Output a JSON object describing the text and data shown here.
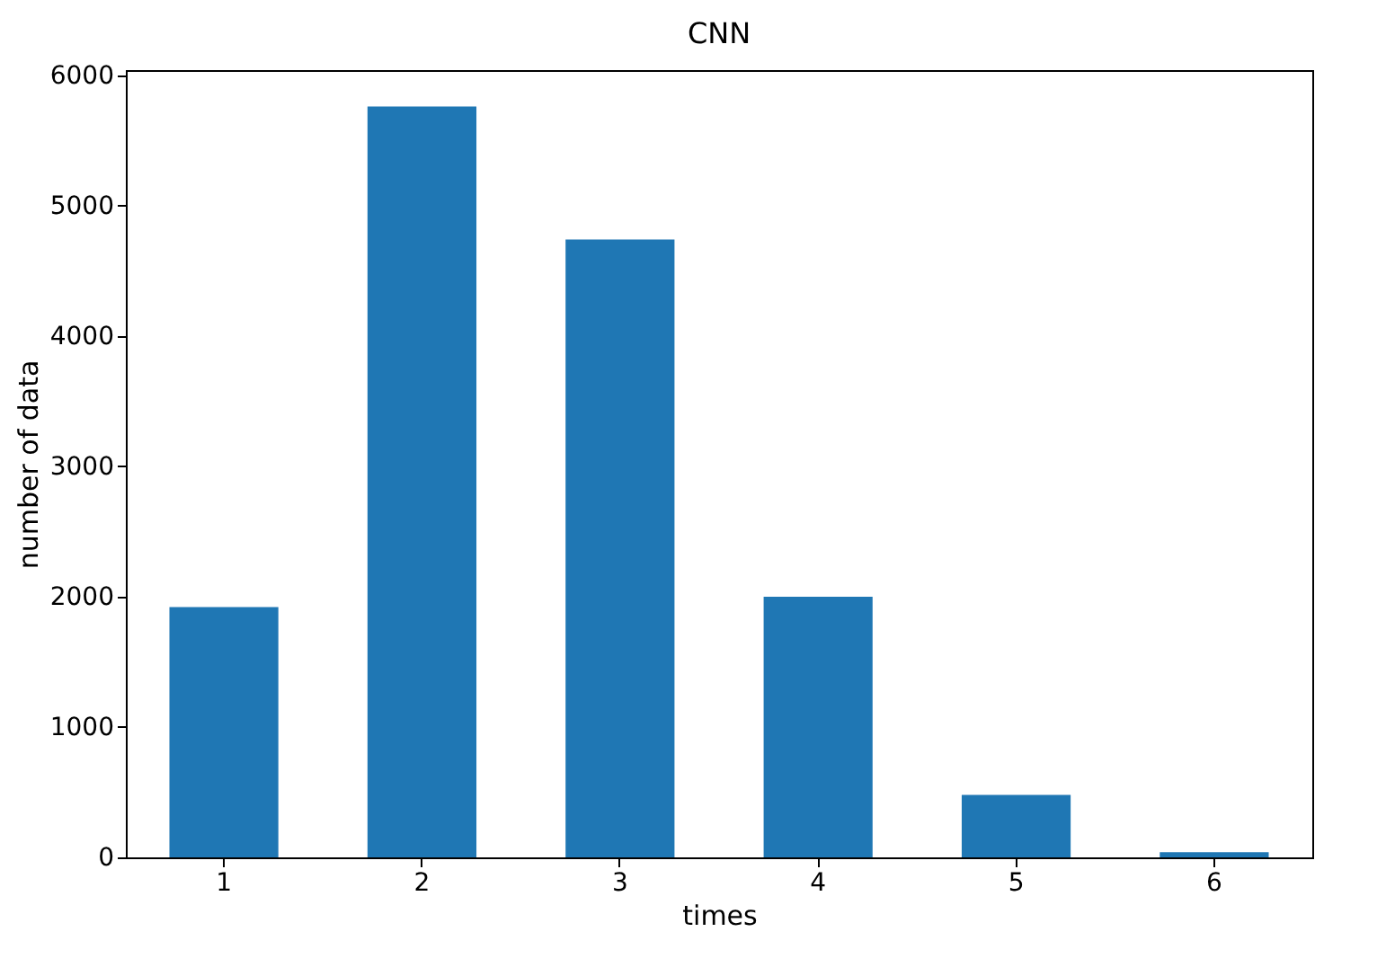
{
  "chart_data": {
    "type": "bar",
    "title": "CNN",
    "xlabel": "times",
    "ylabel": "number of data",
    "categories": [
      "1",
      "2",
      "3",
      "4",
      "5",
      "6"
    ],
    "values": [
      1920,
      5760,
      4740,
      2000,
      480,
      40
    ],
    "color": "#1f77b4",
    "ylim": [
      0,
      6040
    ],
    "yticks": [
      0,
      1000,
      2000,
      3000,
      4000,
      5000,
      6000
    ],
    "grid": false
  }
}
